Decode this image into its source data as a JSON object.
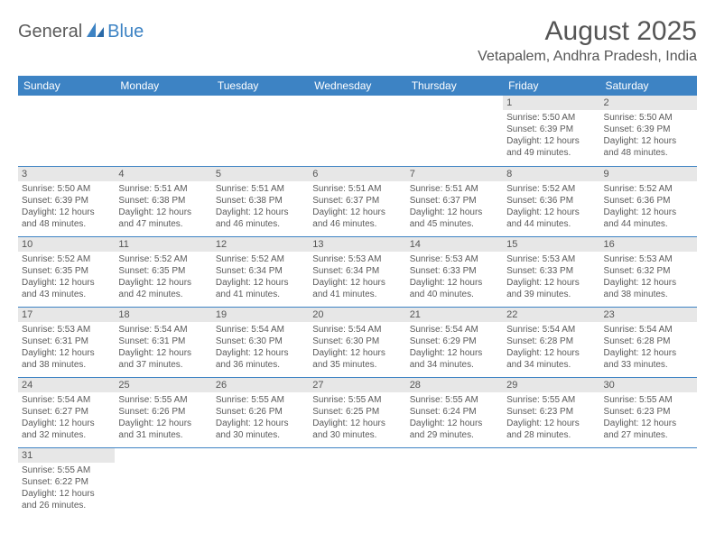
{
  "logo": {
    "text1": "General",
    "text2": "Blue"
  },
  "title": "August 2025",
  "location": "Vetapalem, Andhra Pradesh, India",
  "colors": {
    "header_bg": "#3d83c4",
    "header_text": "#ffffff",
    "daynum_bg": "#e7e7e7",
    "border": "#3d83c4",
    "text": "#5a5a5a"
  },
  "weekdays": [
    "Sunday",
    "Monday",
    "Tuesday",
    "Wednesday",
    "Thursday",
    "Friday",
    "Saturday"
  ],
  "leading_blanks": 5,
  "days": [
    {
      "n": "1",
      "sr": "5:50 AM",
      "ss": "6:39 PM",
      "dl": "12 hours and 49 minutes."
    },
    {
      "n": "2",
      "sr": "5:50 AM",
      "ss": "6:39 PM",
      "dl": "12 hours and 48 minutes."
    },
    {
      "n": "3",
      "sr": "5:50 AM",
      "ss": "6:39 PM",
      "dl": "12 hours and 48 minutes."
    },
    {
      "n": "4",
      "sr": "5:51 AM",
      "ss": "6:38 PM",
      "dl": "12 hours and 47 minutes."
    },
    {
      "n": "5",
      "sr": "5:51 AM",
      "ss": "6:38 PM",
      "dl": "12 hours and 46 minutes."
    },
    {
      "n": "6",
      "sr": "5:51 AM",
      "ss": "6:37 PM",
      "dl": "12 hours and 46 minutes."
    },
    {
      "n": "7",
      "sr": "5:51 AM",
      "ss": "6:37 PM",
      "dl": "12 hours and 45 minutes."
    },
    {
      "n": "8",
      "sr": "5:52 AM",
      "ss": "6:36 PM",
      "dl": "12 hours and 44 minutes."
    },
    {
      "n": "9",
      "sr": "5:52 AM",
      "ss": "6:36 PM",
      "dl": "12 hours and 44 minutes."
    },
    {
      "n": "10",
      "sr": "5:52 AM",
      "ss": "6:35 PM",
      "dl": "12 hours and 43 minutes."
    },
    {
      "n": "11",
      "sr": "5:52 AM",
      "ss": "6:35 PM",
      "dl": "12 hours and 42 minutes."
    },
    {
      "n": "12",
      "sr": "5:52 AM",
      "ss": "6:34 PM",
      "dl": "12 hours and 41 minutes."
    },
    {
      "n": "13",
      "sr": "5:53 AM",
      "ss": "6:34 PM",
      "dl": "12 hours and 41 minutes."
    },
    {
      "n": "14",
      "sr": "5:53 AM",
      "ss": "6:33 PM",
      "dl": "12 hours and 40 minutes."
    },
    {
      "n": "15",
      "sr": "5:53 AM",
      "ss": "6:33 PM",
      "dl": "12 hours and 39 minutes."
    },
    {
      "n": "16",
      "sr": "5:53 AM",
      "ss": "6:32 PM",
      "dl": "12 hours and 38 minutes."
    },
    {
      "n": "17",
      "sr": "5:53 AM",
      "ss": "6:31 PM",
      "dl": "12 hours and 38 minutes."
    },
    {
      "n": "18",
      "sr": "5:54 AM",
      "ss": "6:31 PM",
      "dl": "12 hours and 37 minutes."
    },
    {
      "n": "19",
      "sr": "5:54 AM",
      "ss": "6:30 PM",
      "dl": "12 hours and 36 minutes."
    },
    {
      "n": "20",
      "sr": "5:54 AM",
      "ss": "6:30 PM",
      "dl": "12 hours and 35 minutes."
    },
    {
      "n": "21",
      "sr": "5:54 AM",
      "ss": "6:29 PM",
      "dl": "12 hours and 34 minutes."
    },
    {
      "n": "22",
      "sr": "5:54 AM",
      "ss": "6:28 PM",
      "dl": "12 hours and 34 minutes."
    },
    {
      "n": "23",
      "sr": "5:54 AM",
      "ss": "6:28 PM",
      "dl": "12 hours and 33 minutes."
    },
    {
      "n": "24",
      "sr": "5:54 AM",
      "ss": "6:27 PM",
      "dl": "12 hours and 32 minutes."
    },
    {
      "n": "25",
      "sr": "5:55 AM",
      "ss": "6:26 PM",
      "dl": "12 hours and 31 minutes."
    },
    {
      "n": "26",
      "sr": "5:55 AM",
      "ss": "6:26 PM",
      "dl": "12 hours and 30 minutes."
    },
    {
      "n": "27",
      "sr": "5:55 AM",
      "ss": "6:25 PM",
      "dl": "12 hours and 30 minutes."
    },
    {
      "n": "28",
      "sr": "5:55 AM",
      "ss": "6:24 PM",
      "dl": "12 hours and 29 minutes."
    },
    {
      "n": "29",
      "sr": "5:55 AM",
      "ss": "6:23 PM",
      "dl": "12 hours and 28 minutes."
    },
    {
      "n": "30",
      "sr": "5:55 AM",
      "ss": "6:23 PM",
      "dl": "12 hours and 27 minutes."
    },
    {
      "n": "31",
      "sr": "5:55 AM",
      "ss": "6:22 PM",
      "dl": "12 hours and 26 minutes."
    }
  ],
  "labels": {
    "sunrise": "Sunrise: ",
    "sunset": "Sunset: ",
    "daylight": "Daylight: "
  }
}
